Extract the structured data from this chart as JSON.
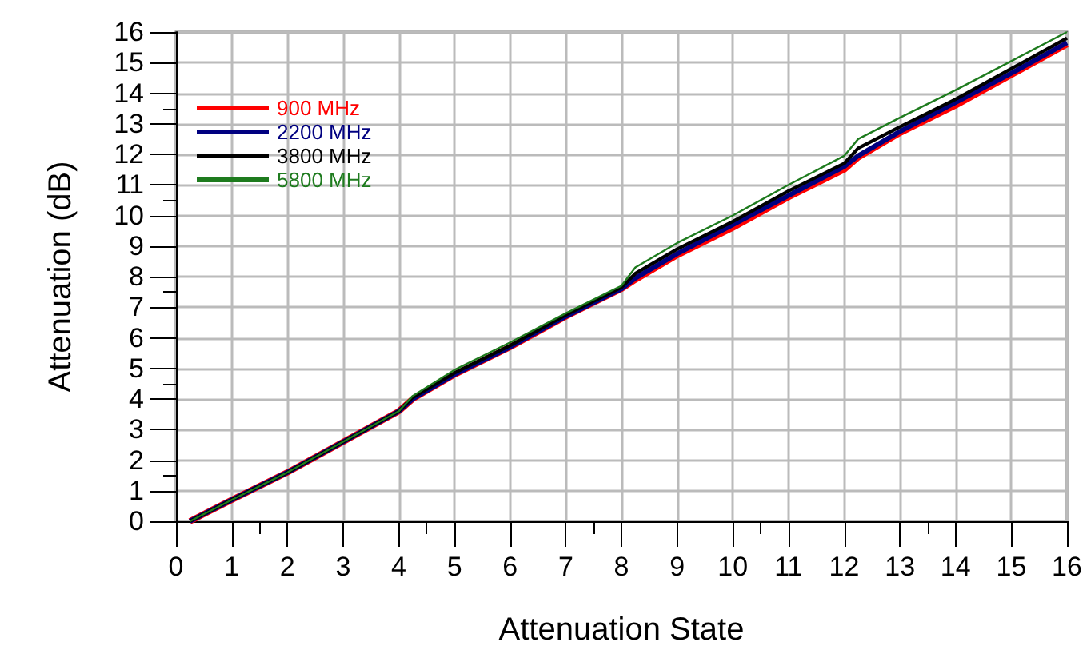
{
  "chart_data": {
    "type": "line",
    "xlabel": "Attenuation State",
    "ylabel": "Attenuation (dB)",
    "x": [
      0.25,
      1,
      2,
      3,
      4,
      4.25,
      5,
      6,
      7,
      8,
      8.25,
      9,
      10,
      11,
      12,
      12.25,
      13,
      14,
      15,
      16
    ],
    "xlim": [
      0,
      16
    ],
    "xticks": [
      0,
      1,
      2,
      3,
      4,
      5,
      6,
      7,
      8,
      9,
      10,
      11,
      12,
      13,
      14,
      15,
      16
    ],
    "ylim": [
      0,
      16
    ],
    "yticks": [
      0,
      1,
      2,
      3,
      4,
      5,
      6,
      7,
      8,
      9,
      10,
      11,
      12,
      13,
      14,
      15,
      16
    ],
    "grid": true,
    "legend": "top left",
    "marker": "none",
    "line_style": "solid",
    "series": [
      {
        "name": "900 MHz",
        "color": "#ff0000",
        "values": [
          0,
          0.7,
          1.6,
          2.6,
          3.6,
          4.0,
          4.8,
          5.7,
          6.7,
          7.6,
          7.9,
          8.7,
          9.6,
          10.6,
          11.5,
          11.9,
          12.7,
          13.6,
          14.6,
          15.6
        ]
      },
      {
        "name": "2200 MHz",
        "color": "#000080",
        "values": [
          0,
          0.7,
          1.6,
          2.6,
          3.6,
          4.0,
          4.8,
          5.7,
          6.7,
          7.6,
          7.95,
          8.75,
          9.7,
          10.65,
          11.6,
          11.95,
          12.75,
          13.7,
          14.65,
          15.65
        ]
      },
      {
        "name": "3800 MHz",
        "color": "#000000",
        "values": [
          0,
          0.7,
          1.6,
          2.6,
          3.6,
          4.05,
          4.85,
          5.75,
          6.75,
          7.65,
          8.1,
          8.9,
          9.8,
          10.8,
          11.7,
          12.2,
          12.9,
          13.8,
          14.8,
          15.8
        ]
      },
      {
        "name": "5800 MHz",
        "color": "#1e7b1e",
        "values": [
          0,
          0.7,
          1.6,
          2.6,
          3.6,
          4.1,
          4.95,
          5.85,
          6.8,
          7.7,
          8.3,
          9.1,
          10.0,
          11.0,
          11.95,
          12.5,
          13.2,
          14.1,
          15.05,
          16.0
        ]
      }
    ]
  }
}
